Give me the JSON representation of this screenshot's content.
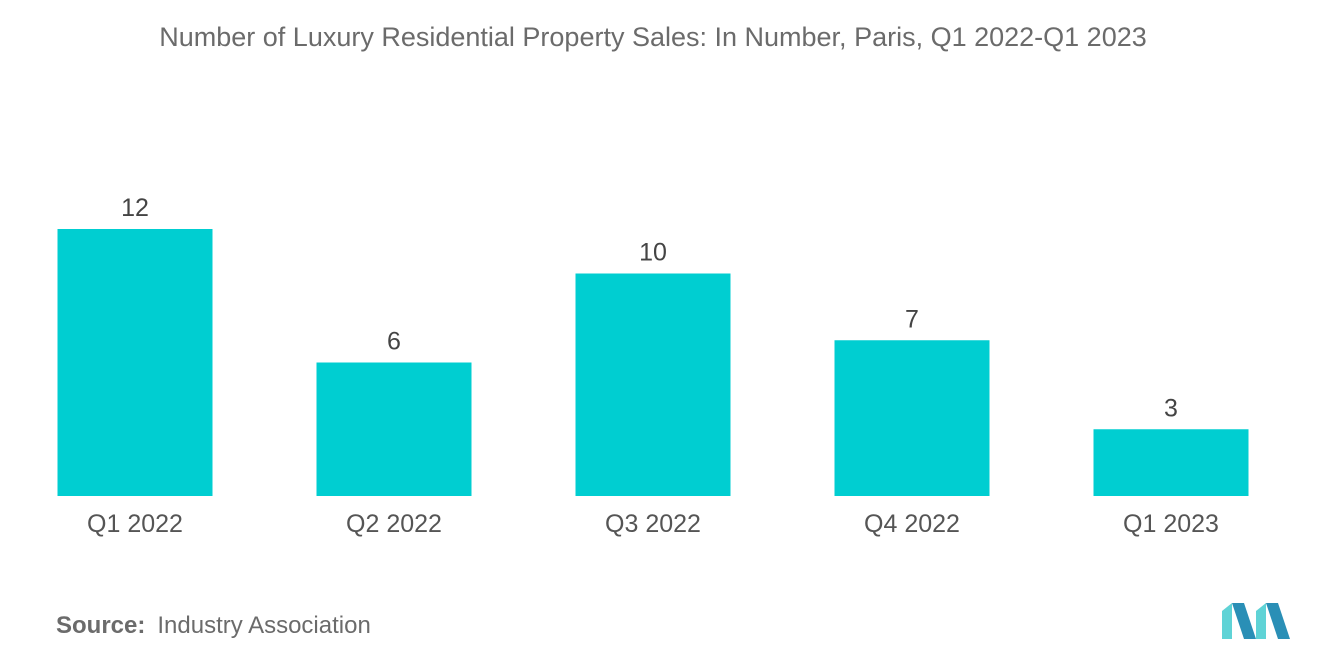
{
  "chart_data": {
    "type": "bar",
    "title": "Number of Luxury Residential Property Sales: In Number, Paris, Q1 2022-Q1 2023",
    "categories": [
      "Q1 2022",
      "Q2 2022",
      "Q3 2022",
      "Q4 2022",
      "Q1 2023"
    ],
    "values": [
      12,
      6,
      10,
      7,
      3
    ],
    "xlabel": "",
    "ylabel": "",
    "ylim": [
      0,
      12
    ],
    "grid": false,
    "legend": "none",
    "bar_color": "#00ced1"
  },
  "source": {
    "label": "Source:",
    "text": "Industry Association"
  },
  "colors": {
    "text": "#6b6b6b",
    "bar": "#00ced1",
    "logo_dark": "#2a8fb6",
    "logo_light": "#5fd3d6"
  }
}
